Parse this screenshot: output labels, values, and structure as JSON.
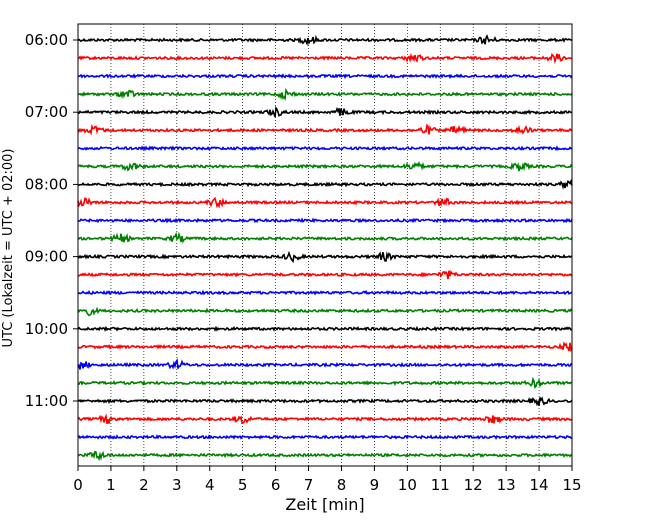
{
  "chart_data": {
    "type": "line",
    "title": "",
    "xlabel": "Zeit  [min]",
    "ylabel": "UTC (Lokalzeit = UTC + 02:00)",
    "xlim": [
      0,
      15
    ],
    "x_ticks": [
      "0",
      "1",
      "2",
      "3",
      "4",
      "5",
      "6",
      "7",
      "8",
      "9",
      "10",
      "11",
      "12",
      "13",
      "14",
      "15"
    ],
    "y_tick_labels": [
      "06:00",
      "07:00",
      "08:00",
      "09:00",
      "10:00",
      "11:00"
    ],
    "grid": "vertical-dotted",
    "trace_interval_min": 15,
    "color_cycle": [
      "#000000",
      "#ff0000",
      "#0000ff",
      "#008000"
    ],
    "series": [
      {
        "start": "06:00",
        "color": "#000000",
        "events": [
          7.0,
          12.4
        ]
      },
      {
        "start": "06:15",
        "color": "#ff0000",
        "events": [
          10.2,
          14.5
        ]
      },
      {
        "start": "06:30",
        "color": "#0000ff",
        "events": []
      },
      {
        "start": "06:45",
        "color": "#008000",
        "events": [
          1.5,
          6.3
        ]
      },
      {
        "start": "07:00",
        "color": "#000000",
        "events": [
          6.0,
          8.0
        ]
      },
      {
        "start": "07:15",
        "color": "#ff0000",
        "events": [
          0.5,
          10.6,
          11.5,
          13.5
        ]
      },
      {
        "start": "07:30",
        "color": "#0000ff",
        "events": []
      },
      {
        "start": "07:45",
        "color": "#008000",
        "events": [
          1.6,
          10.2,
          13.4
        ]
      },
      {
        "start": "08:00",
        "color": "#000000",
        "events": [
          14.9
        ]
      },
      {
        "start": "08:15",
        "color": "#ff0000",
        "events": [
          0.2,
          4.2,
          11.1
        ]
      },
      {
        "start": "08:30",
        "color": "#0000ff",
        "events": []
      },
      {
        "start": "08:45",
        "color": "#008000",
        "events": [
          1.3,
          3.0
        ]
      },
      {
        "start": "09:00",
        "color": "#000000",
        "events": [
          6.5,
          9.3
        ]
      },
      {
        "start": "09:15",
        "color": "#ff0000",
        "events": [
          11.2
        ]
      },
      {
        "start": "09:30",
        "color": "#0000ff",
        "events": []
      },
      {
        "start": "09:45",
        "color": "#008000",
        "events": [
          0.3
        ]
      },
      {
        "start": "10:00",
        "color": "#000000",
        "events": []
      },
      {
        "start": "10:15",
        "color": "#ff0000",
        "events": [
          14.9
        ]
      },
      {
        "start": "10:30",
        "color": "#0000ff",
        "events": [
          0.1,
          3.0
        ]
      },
      {
        "start": "10:45",
        "color": "#008000",
        "events": [
          13.9
        ]
      },
      {
        "start": "11:00",
        "color": "#000000",
        "events": [
          14.0
        ]
      },
      {
        "start": "11:15",
        "color": "#ff0000",
        "events": [
          0.9,
          5.0,
          12.6
        ]
      },
      {
        "start": "11:30",
        "color": "#0000ff",
        "events": []
      },
      {
        "start": "11:45",
        "color": "#008000",
        "events": [
          0.6
        ]
      }
    ]
  }
}
